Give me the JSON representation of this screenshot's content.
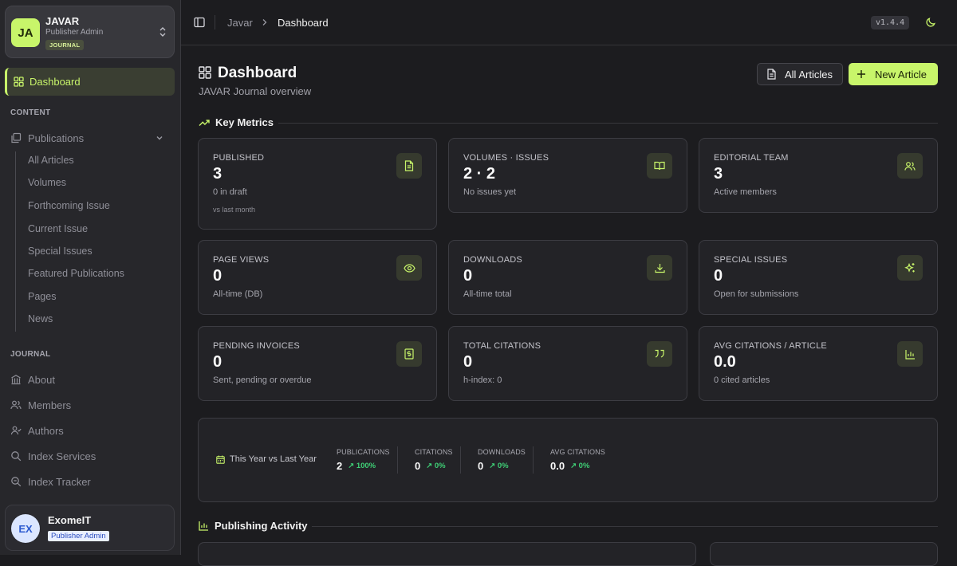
{
  "sidebar": {
    "brand": {
      "initials": "JA",
      "name": "JAVAR",
      "role": "Publisher Admin",
      "badge": "JOURNAL"
    },
    "active_item": "Dashboard",
    "content_header": "CONTENT",
    "publications_label": "Publications",
    "publication_items": [
      "All Articles",
      "Volumes",
      "Forthcoming Issue",
      "Current Issue",
      "Special Issues",
      "Featured Publications",
      "Pages",
      "News"
    ],
    "journal_header": "JOURNAL",
    "journal_items": [
      "About",
      "Members",
      "Authors",
      "Index Services",
      "Index Tracker"
    ],
    "user": {
      "initials": "EX",
      "name": "ExomeIT",
      "role": "Publisher Admin"
    }
  },
  "topbar": {
    "crumb_root": "Javar",
    "crumb_current": "Dashboard",
    "version": "v1.4.4"
  },
  "header": {
    "title": "Dashboard",
    "subtitle": "JAVAR Journal overview",
    "all_articles_label": "All Articles",
    "new_article_label": "New Article"
  },
  "metrics": {
    "title": "Key Metrics",
    "cards": [
      {
        "label": "PUBLISHED",
        "value": "3",
        "note": "0 in draft",
        "extra": "vs last month",
        "icon": "document-icon"
      },
      {
        "label": "VOLUMES · ISSUES",
        "value": "2 · 2",
        "note": "No issues yet",
        "icon": "book-open-icon"
      },
      {
        "label": "EDITORIAL TEAM",
        "value": "3",
        "note": "Active members",
        "icon": "users-icon"
      },
      {
        "label": "PAGE VIEWS",
        "value": "0",
        "note": "All-time (DB)",
        "icon": "eye-icon"
      },
      {
        "label": "DOWNLOADS",
        "value": "0",
        "note": "All-time total",
        "icon": "download-icon"
      },
      {
        "label": "SPECIAL ISSUES",
        "value": "0",
        "note": "Open for submissions",
        "icon": "sparkles-icon"
      },
      {
        "label": "PENDING INVOICES",
        "value": "0",
        "note": "Sent, pending or overdue",
        "icon": "receipt-icon"
      },
      {
        "label": "TOTAL CITATIONS",
        "value": "0",
        "note": "h-index: 0",
        "icon": "quote-icon"
      },
      {
        "label": "AVG CITATIONS / ARTICLE",
        "value": "0.0",
        "note": "0 cited articles",
        "icon": "bar-chart-icon"
      }
    ]
  },
  "comparison": {
    "title": "This Year vs Last Year",
    "stats": [
      {
        "label": "PUBLICATIONS",
        "value": "2",
        "change": "↗ 100%"
      },
      {
        "label": "CITATIONS",
        "value": "0",
        "change": "↗ 0%"
      },
      {
        "label": "DOWNLOADS",
        "value": "0",
        "change": "↗ 0%"
      },
      {
        "label": "AVG CITATIONS",
        "value": "0.0",
        "change": "↗ 0%"
      }
    ]
  },
  "activity": {
    "title": "Publishing Activity"
  },
  "colors": {
    "accent": "#c8f56a",
    "positive": "#3fcf76",
    "background": "#1c1c1f",
    "sidebar": "#27272b"
  }
}
